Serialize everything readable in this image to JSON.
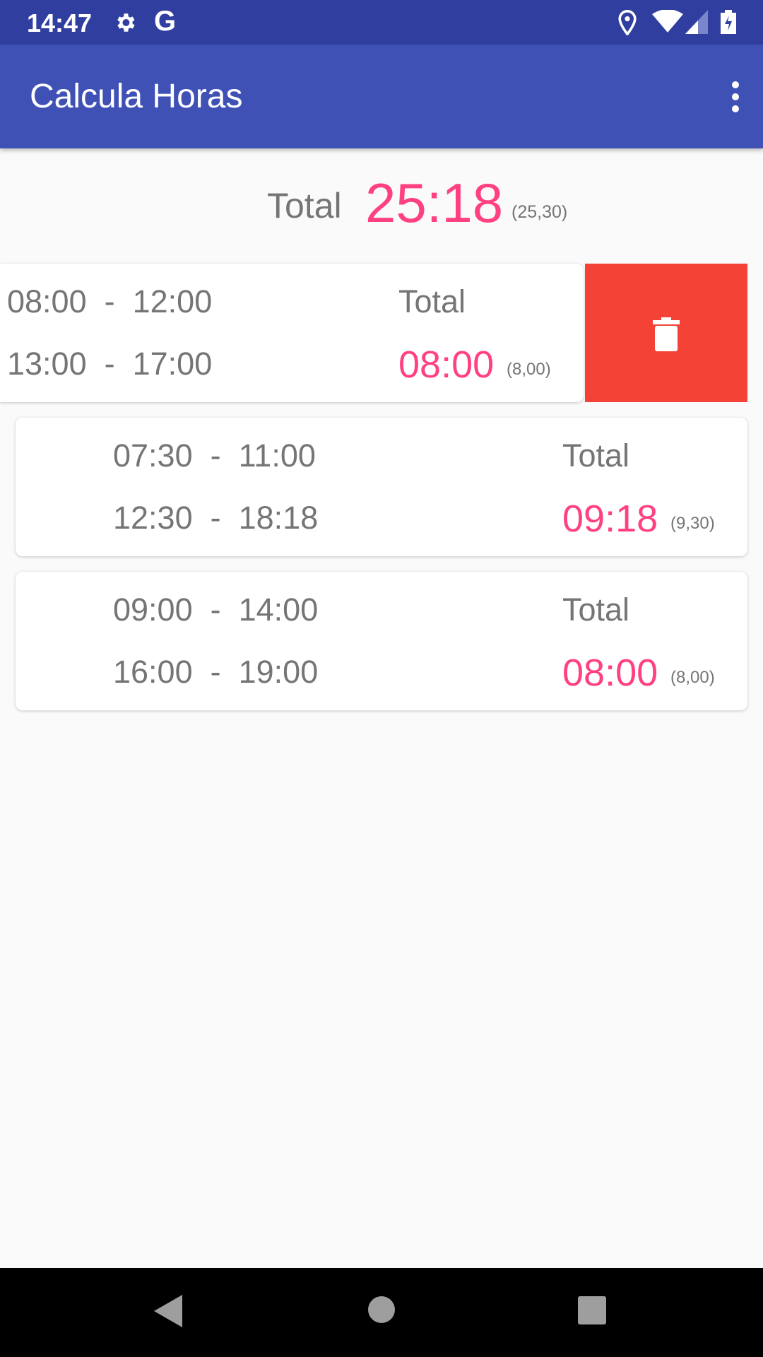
{
  "status_bar": {
    "time": "14:47",
    "icons": [
      "gear-icon",
      "google-icon",
      "location-icon",
      "wifi-icon",
      "signal-icon",
      "battery-charging-icon"
    ]
  },
  "app_bar": {
    "title": "Calcula Horas",
    "menu_icon": "more-vert-icon"
  },
  "summary": {
    "label": "Total",
    "value": "25:18",
    "decimal": "(25,30)"
  },
  "colors": {
    "primary": "#3f51b5",
    "primary_dark": "#303f9f",
    "accent": "#ff4081",
    "delete": "#f44336"
  },
  "entries": [
    {
      "row1": "08:00  -  12:00",
      "row2": "13:00  -  17:00",
      "total_label": "Total",
      "total": "08:00",
      "decimal": "(8,00)",
      "swiped": true
    },
    {
      "row1": "07:30  -  11:00",
      "row2": "12:30  -  18:18",
      "total_label": "Total",
      "total": "09:18",
      "decimal": "(9,30)"
    },
    {
      "row1": "09:00  -  14:00",
      "row2": "16:00  -  19:00",
      "total_label": "Total",
      "total": "08:00",
      "decimal": "(8,00)"
    }
  ],
  "delete_action": {
    "icon": "trash-icon"
  },
  "nav_bar": {
    "icons": [
      "back-icon",
      "home-icon",
      "recents-icon"
    ]
  }
}
